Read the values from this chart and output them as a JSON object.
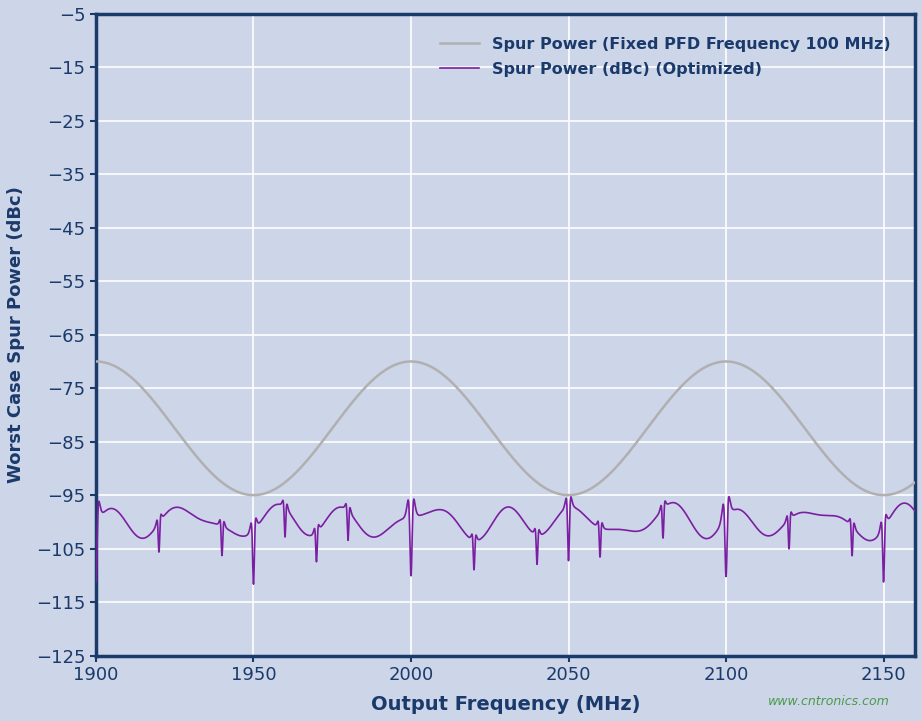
{
  "title": "",
  "xlabel": "Output Frequency (MHz)",
  "ylabel": "Worst Case Spur Power (dBc)",
  "xlim": [
    1900,
    2160
  ],
  "ylim": [
    -125,
    -5
  ],
  "yticks": [
    -125,
    -115,
    -105,
    -95,
    -85,
    -75,
    -65,
    -55,
    -45,
    -35,
    -25,
    -15,
    -5
  ],
  "xticks": [
    1900,
    1950,
    2000,
    2050,
    2100,
    2150
  ],
  "background_color": "#cdd5e8",
  "plot_bg_color": "#cdd5e8",
  "grid_color": "#ffffff",
  "axis_color": "#1a3a6b",
  "tick_color": "#1a3a6b",
  "label_color": "#1a3a6b",
  "legend_label_fixed": "Spur Power (Fixed PFD Frequency 100 MHz)",
  "legend_label_opt": "Spur Power (dBc) (Optimized)",
  "fixed_color": "#b0b0b0",
  "opt_color": "#7b1fa2",
  "watermark": "www.cntronics.com",
  "watermark_color": "#4a9a4a",
  "freq_start": 1900,
  "freq_end": 2160,
  "n_points": 5000
}
